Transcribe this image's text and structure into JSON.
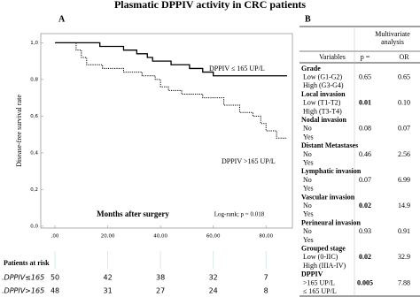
{
  "title": "Plasmatic DPPIV activity in CRC patients",
  "chart_data": {
    "type": "line",
    "panel": "A",
    "xlabel": "Months after surgery",
    "ylabel": "Disease-free survival rate",
    "annotation": "Log-rank;  p = 0.018",
    "xlim": [
      -5.4,
      90
    ],
    "ylim": [
      -0.01,
      1.05
    ],
    "xticks": [
      {
        "value": 0,
        "label": ",00"
      },
      {
        "value": 20,
        "label": "20,00"
      },
      {
        "value": 40,
        "label": "40,00"
      },
      {
        "value": 60,
        "label": "60,00"
      },
      {
        "value": 80,
        "label": "80,00"
      }
    ],
    "yticks": [
      {
        "value": 0,
        "label": "0,0"
      },
      {
        "value": 0.2,
        "label": "0,2"
      },
      {
        "value": 0.4,
        "label": "0,4"
      },
      {
        "value": 0.6,
        "label": "0,6"
      },
      {
        "value": 0.8,
        "label": "0,8"
      },
      {
        "value": 1,
        "label": "1,0"
      }
    ],
    "series": [
      {
        "name": "DPPIV ≤ 165 UP/L",
        "color": "#000000",
        "dash": "solid",
        "x": [
          0,
          17,
          17,
          26,
          26,
          31,
          31,
          35,
          35,
          37,
          37,
          44,
          44,
          51,
          51,
          56,
          56,
          60,
          60,
          88
        ],
        "values": [
          1,
          1,
          0.98,
          0.98,
          0.96,
          0.96,
          0.94,
          0.94,
          0.92,
          0.92,
          0.9,
          0.9,
          0.88,
          0.88,
          0.86,
          0.86,
          0.84,
          0.84,
          0.82,
          0.82
        ]
      },
      {
        "name": "DPPIV >165 UP/L",
        "color": "#000000",
        "dash": "dotted",
        "x": [
          0,
          8,
          8,
          10,
          10,
          12,
          12,
          18,
          18,
          26,
          26,
          33,
          33,
          38,
          38,
          40,
          40,
          43,
          43,
          48,
          48,
          56,
          56,
          64,
          64,
          70,
          70,
          75,
          75,
          78,
          78,
          80,
          80,
          84,
          84,
          88
        ],
        "values": [
          1,
          1,
          0.96,
          0.96,
          0.92,
          0.92,
          0.88,
          0.88,
          0.86,
          0.86,
          0.84,
          0.84,
          0.82,
          0.82,
          0.8,
          0.8,
          0.76,
          0.76,
          0.74,
          0.74,
          0.72,
          0.72,
          0.7,
          0.7,
          0.66,
          0.66,
          0.62,
          0.62,
          0.6,
          0.6,
          0.56,
          0.56,
          0.52,
          0.52,
          0.48,
          0.48
        ]
      }
    ],
    "at_risk": {
      "title": "Patients at risk",
      "rows": [
        {
          "label": ".DPPIV≤165",
          "values": [
            50,
            42,
            38,
            32,
            7
          ]
        },
        {
          "label": ".DPPIV>165",
          "values": [
            48,
            31,
            27,
            24,
            8
          ]
        }
      ]
    }
  },
  "table": {
    "panel": "B",
    "header": {
      "group": "Multivariate analysis",
      "columns": [
        "Variables",
        "p =",
        "OR"
      ]
    },
    "groups": [
      {
        "label": "Grade",
        "items": [
          {
            "label": "Low (G1-G2)",
            "p": "0.65",
            "or": "0.65"
          },
          {
            "label": "High (G3-G4)"
          }
        ]
      },
      {
        "label": "Local invasion",
        "items": [
          {
            "label": "Low (T1-T2)",
            "p": "0.01",
            "or": "0.10",
            "bold": true
          },
          {
            "label": "High (T3-T4)"
          }
        ]
      },
      {
        "label": "Nodal invasion",
        "items": [
          {
            "label": "No",
            "p": "0.08",
            "or": "0.07"
          },
          {
            "label": "Yes"
          }
        ]
      },
      {
        "label": "Distant Metastases",
        "items": [
          {
            "label": "No",
            "p": "0.46",
            "or": "2.56"
          },
          {
            "label": "Yes"
          }
        ]
      },
      {
        "label": "Lymphatic invasion",
        "items": [
          {
            "label": "No",
            "p": "0.07",
            "or": "6.99"
          },
          {
            "label": "Yes"
          }
        ]
      },
      {
        "label": "Vascular invasion",
        "items": [
          {
            "label": "No",
            "p": "0.02",
            "or": "14.9",
            "bold": true
          },
          {
            "label": "Yes"
          }
        ]
      },
      {
        "label": "Perineural invasion",
        "items": [
          {
            "label": "No",
            "p": "0.93",
            "or": "0.91"
          },
          {
            "label": "Yes"
          }
        ]
      },
      {
        "label": "Grouped stage",
        "items": [
          {
            "label": "Low (0-IIC)",
            "p": "0.02",
            "or": "32.9",
            "bold": true
          },
          {
            "label": "High (IIIA-IV)"
          }
        ]
      },
      {
        "label": "DPPIV",
        "items": [
          {
            "label": ">165 UP/L",
            "p": "0.005",
            "or": "7.88",
            "bold": true
          },
          {
            "label": "≤ 165 UP/L"
          }
        ]
      }
    ]
  }
}
